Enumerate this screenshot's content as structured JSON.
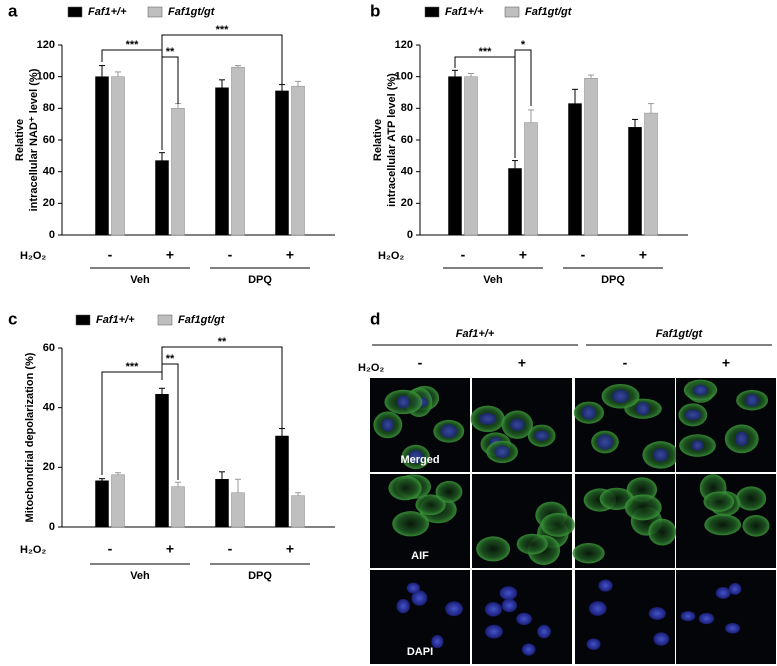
{
  "chart_data": [
    {
      "type": "bar",
      "panel": "a",
      "ylabel": [
        "Relative",
        "intracellular NAD⁺ level (%)"
      ],
      "categories": [
        "-",
        "+",
        "-",
        "+"
      ],
      "row_label": "H₂O₂",
      "groups": [
        "Veh",
        "DPQ"
      ],
      "series": [
        {
          "name": "Faf1+/+",
          "color": "#000000",
          "values": [
            100,
            47,
            93,
            91
          ],
          "errors": [
            7,
            5,
            5,
            4
          ]
        },
        {
          "name": "Faf1gt/gt",
          "color": "#bfbfbf",
          "values": [
            100,
            80,
            106,
            94
          ],
          "errors": [
            3,
            3,
            1,
            3
          ]
        }
      ],
      "ylim": [
        0,
        120
      ],
      "yticks": [
        0,
        20,
        40,
        60,
        80,
        100,
        120
      ],
      "significance": [
        "***",
        "**",
        "***"
      ]
    },
    {
      "type": "bar",
      "panel": "b",
      "ylabel": [
        "Relative",
        "intracellular ATP level (%)"
      ],
      "categories": [
        "-",
        "+",
        "-",
        "+"
      ],
      "row_label": "H₂O₂",
      "groups": [
        "Veh",
        "DPQ"
      ],
      "series": [
        {
          "name": "Faf1+/+",
          "color": "#000000",
          "values": [
            100,
            42,
            83,
            68
          ],
          "errors": [
            4,
            5,
            9,
            5
          ]
        },
        {
          "name": "Faf1gt/gt",
          "color": "#bfbfbf",
          "values": [
            100,
            71,
            99,
            77
          ],
          "errors": [
            2,
            8,
            2,
            6
          ]
        }
      ],
      "ylim": [
        0,
        120
      ],
      "yticks": [
        0,
        20,
        40,
        60,
        80,
        100,
        120
      ],
      "significance": [
        "***",
        "*"
      ]
    },
    {
      "type": "bar",
      "panel": "c",
      "ylabel": [
        "Mitochondrial depolarization (%)"
      ],
      "categories": [
        "-",
        "+",
        "-",
        "+"
      ],
      "row_label": "H₂O₂",
      "groups": [
        "Veh",
        "DPQ"
      ],
      "series": [
        {
          "name": "Faf1+/+",
          "color": "#000000",
          "values": [
            15.5,
            44.5,
            16,
            30.5
          ],
          "errors": [
            0.7,
            2,
            2.5,
            2.5
          ]
        },
        {
          "name": "Faf1gt/gt",
          "color": "#bfbfbf",
          "values": [
            17.5,
            13.5,
            11.5,
            10.5
          ],
          "errors": [
            0.7,
            1.5,
            4.5,
            1
          ]
        }
      ],
      "ylim": [
        0,
        60
      ],
      "yticks": [
        0,
        20,
        40,
        60
      ],
      "significance": [
        "***",
        "**",
        "**"
      ]
    }
  ],
  "panel_d": {
    "panel": "d",
    "genotypes": [
      "Faf1+/+",
      "Faf1gt/gt"
    ],
    "row_label": "H₂O₂",
    "signs": [
      "-",
      "+",
      "-",
      "+"
    ],
    "rows": [
      "Merged",
      "AIF",
      "DAPI"
    ]
  }
}
